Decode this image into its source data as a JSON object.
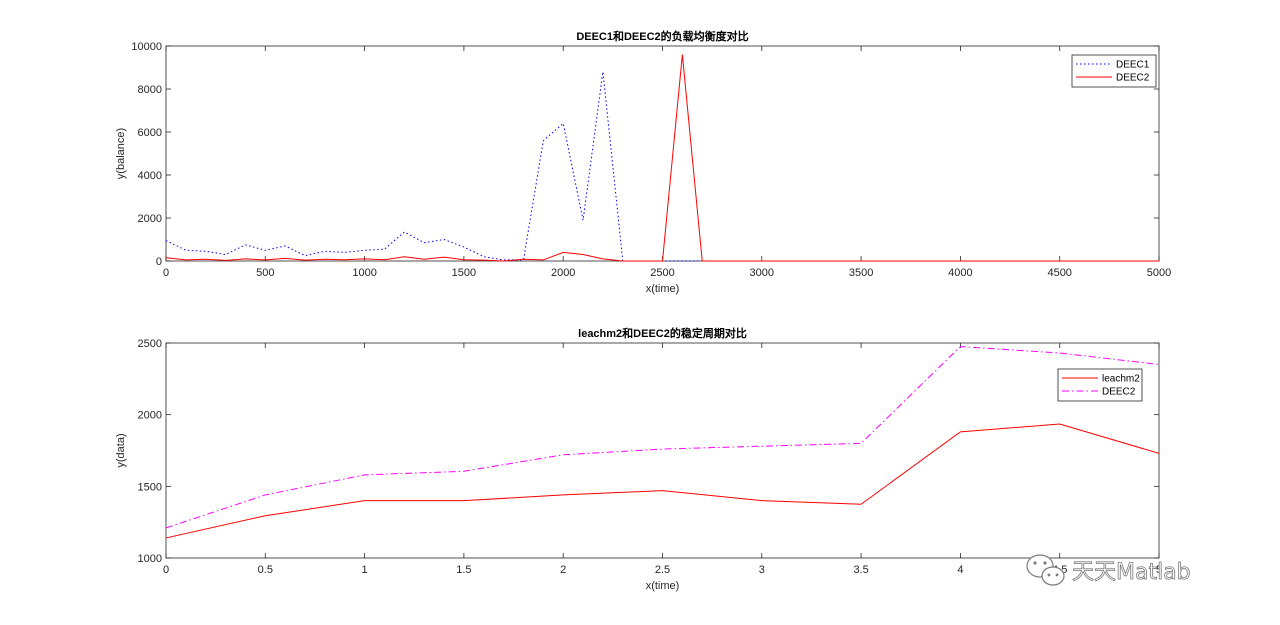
{
  "chart_data": [
    {
      "type": "line",
      "title": "DEEC1和DEEC2的负载均衡度对比",
      "xlabel": "x(time)",
      "ylabel": "y(balance)",
      "xlim": [
        0,
        5000
      ],
      "ylim": [
        0,
        10000
      ],
      "xticks": [
        0,
        500,
        1000,
        1500,
        2000,
        2500,
        3000,
        3500,
        4000,
        4500,
        5000
      ],
      "yticks": [
        0,
        2000,
        4000,
        6000,
        8000,
        10000
      ],
      "grid": false,
      "legend_position": "top-right",
      "x": [
        0,
        100,
        200,
        300,
        400,
        500,
        600,
        700,
        800,
        900,
        1000,
        1100,
        1200,
        1300,
        1400,
        1500,
        1600,
        1700,
        1800,
        1900,
        2000,
        2100,
        2200,
        2300,
        2400,
        2500,
        2600,
        2700,
        2800,
        2900,
        3000,
        3100,
        3200,
        3300,
        3400,
        3500,
        3600,
        3700,
        3800,
        3900,
        4000,
        4100,
        4200,
        4300,
        4400,
        4500,
        4600,
        4700,
        4800,
        4900,
        5000
      ],
      "series": [
        {
          "name": "DEEC1",
          "color": "#0000ff",
          "style": "dotted",
          "values": [
            950,
            500,
            450,
            300,
            750,
            500,
            700,
            250,
            450,
            400,
            500,
            550,
            1350,
            850,
            1000,
            650,
            200,
            50,
            50,
            5600,
            6400,
            1900,
            8800,
            0,
            0,
            0,
            0,
            0,
            0,
            0,
            0,
            0,
            0,
            0,
            0,
            0,
            0,
            0,
            0,
            0,
            0,
            0,
            0,
            0,
            0,
            0,
            0,
            0,
            0,
            0,
            0
          ]
        },
        {
          "name": "DEEC2",
          "color": "#ff0000",
          "style": "solid",
          "values": [
            150,
            50,
            80,
            30,
            100,
            50,
            120,
            40,
            80,
            60,
            100,
            60,
            200,
            80,
            180,
            60,
            40,
            0,
            80,
            50,
            400,
            300,
            100,
            0,
            0,
            0,
            9600,
            0,
            0,
            0,
            0,
            0,
            0,
            0,
            0,
            0,
            0,
            0,
            0,
            0,
            0,
            0,
            0,
            0,
            0,
            0,
            0,
            0,
            0,
            0,
            0
          ]
        }
      ]
    },
    {
      "type": "line",
      "title": "leachm2和DEEC2的稳定周期对比",
      "xlabel": "x(time)",
      "ylabel": "y(data)",
      "xlim": [
        0,
        5
      ],
      "ylim": [
        1000,
        2500
      ],
      "xticks": [
        "0",
        "0.5",
        "1",
        "1.5",
        "2",
        "2.5",
        "3",
        "3.5",
        "4",
        "4.5",
        "5"
      ],
      "yticks": [
        1000,
        1500,
        2000,
        2500
      ],
      "grid": false,
      "legend_position": "top-right",
      "x": [
        0,
        0.5,
        1,
        1.5,
        2,
        2.5,
        3,
        3.5,
        4,
        4.5,
        5
      ],
      "series": [
        {
          "name": "leachm2",
          "color": "#ff0000",
          "style": "solid",
          "values": [
            1140,
            1295,
            1400,
            1400,
            1440,
            1470,
            1400,
            1375,
            1880,
            1935,
            1730
          ]
        },
        {
          "name": "DEEC2",
          "color": "#ff00ff",
          "style": "dashdot",
          "values": [
            1210,
            1440,
            1580,
            1605,
            1720,
            1760,
            1780,
            1800,
            2475,
            2430,
            2350
          ]
        }
      ]
    }
  ],
  "watermark": {
    "text": "天天Matlab",
    "icon": "wechat-icon"
  }
}
